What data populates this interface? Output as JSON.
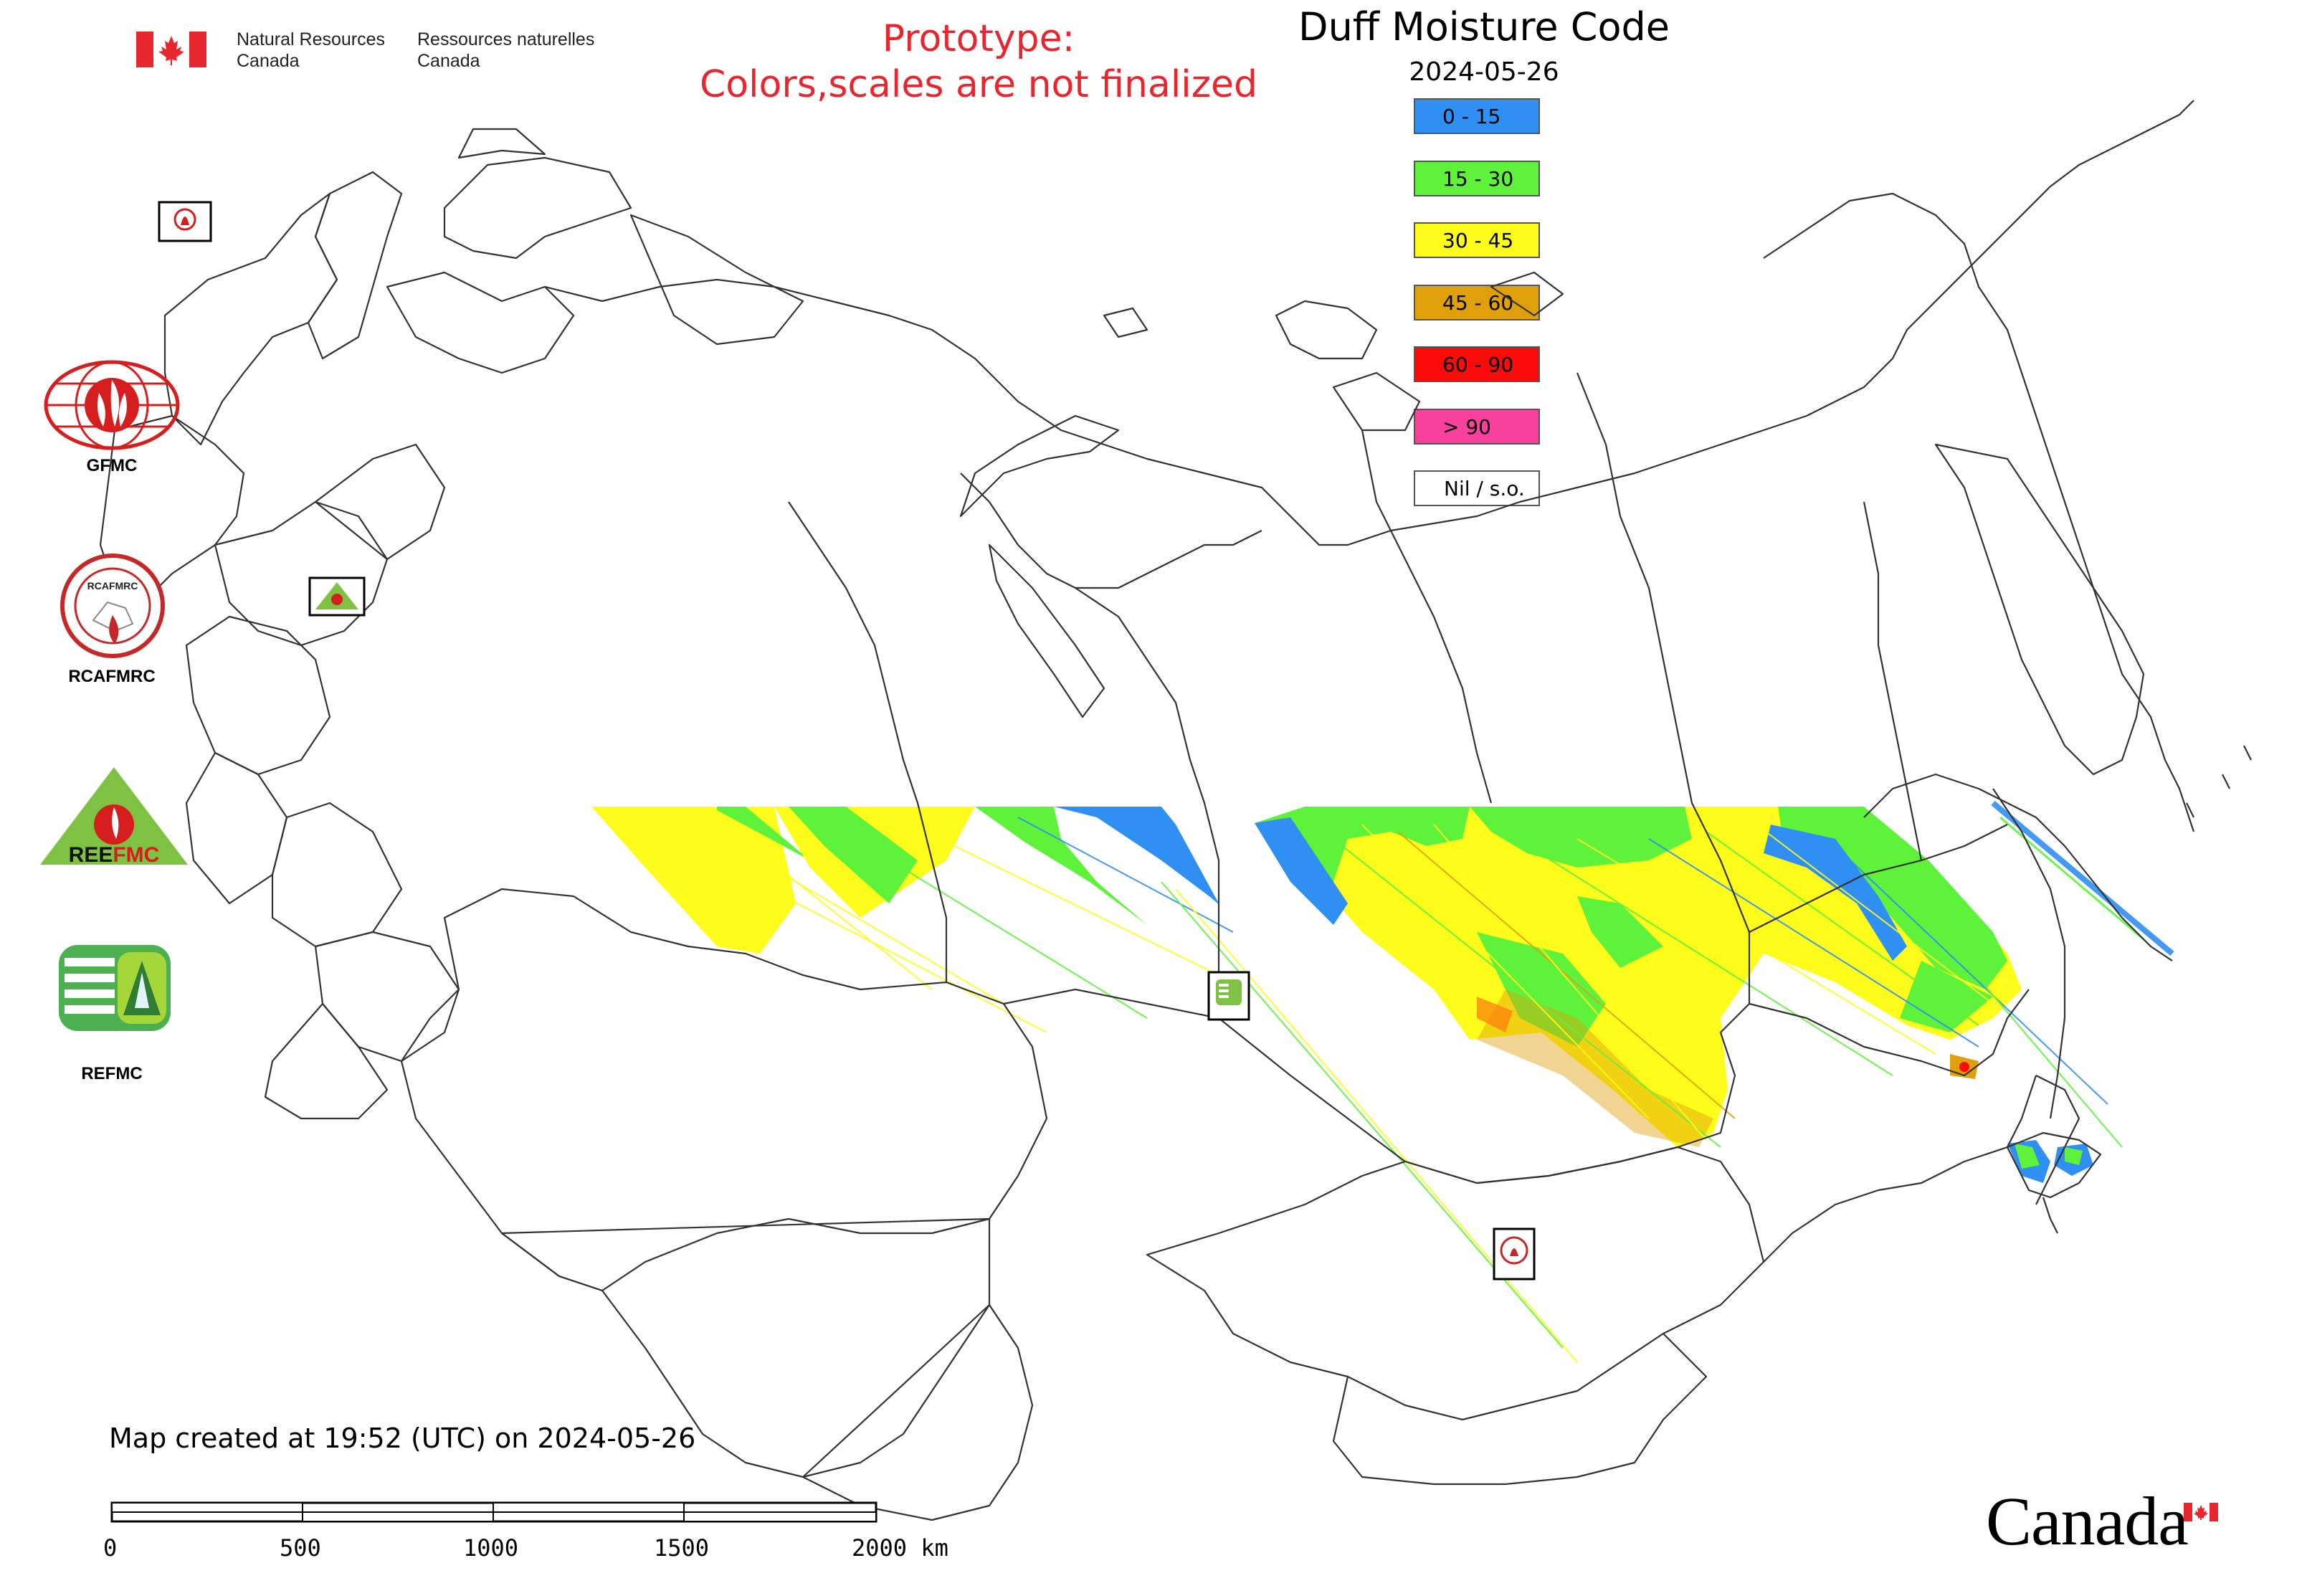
{
  "header": {
    "org_en_line1": "Natural Resources",
    "org_en_line2": "Canada",
    "org_fr_line1": "Ressources naturelles",
    "org_fr_line2": "Canada",
    "prototype_line1": "Prototype:",
    "prototype_line2": "Colors,scales are not finalized"
  },
  "map": {
    "title": "Duff Moisture Code",
    "date": "2024-05-26"
  },
  "legend": [
    {
      "label": "0 - 15",
      "color": "#2f8ff3"
    },
    {
      "label": "15 - 30",
      "color": "#5ef23a"
    },
    {
      "label": "30 - 45",
      "color": "#fdfc1a"
    },
    {
      "label": "45 - 60",
      "color": "#e0a00c"
    },
    {
      "label": "60 - 90",
      "color": "#fb0a0a"
    },
    {
      "label": "> 90",
      "color": "#f7419c"
    },
    {
      "label": "Nil / s.o.",
      "color": "#ffffff"
    }
  ],
  "logos": {
    "gfmc": "GFMC",
    "rcafmrc": "RCAFMRC",
    "reefmc": "REEFMC",
    "refmc": "REFMC"
  },
  "footer": {
    "created": "Map created at 19:52 (UTC) on 2024-05-26",
    "wordmark": "Canada"
  },
  "scale_bar": {
    "ticks": [
      "0",
      "500",
      "1000",
      "1500",
      "2000 km"
    ]
  },
  "colors": {
    "prototype_red": "#e8262d",
    "canada_red": "#e8262d",
    "border_gray": "#333333"
  },
  "icons": [
    "canada-flag-icon",
    "gfmc-logo-icon",
    "rcafmrc-logo-icon",
    "reefmc-logo-icon",
    "refmc-logo-icon",
    "station-marker-icon"
  ]
}
